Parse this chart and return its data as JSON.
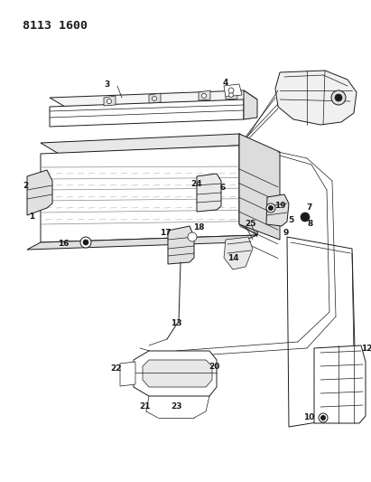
{
  "title": "8113 1600",
  "bg_color": "#ffffff",
  "line_color": "#1a1a1a",
  "title_fontsize": 9.5,
  "label_fontsize": 6.5,
  "fig_width": 4.11,
  "fig_height": 5.33,
  "dpi": 100
}
